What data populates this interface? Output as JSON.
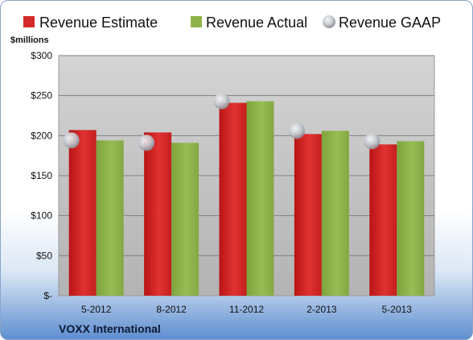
{
  "chart_data": {
    "type": "bar",
    "unit_label": "$millions",
    "categories": [
      "5-2012",
      "8-2012",
      "11-2012",
      "2-2013",
      "5-2013"
    ],
    "series": [
      {
        "name": "Revenue Estimate",
        "kind": "bar",
        "color": "#d42a2a",
        "values": [
          207,
          204,
          241,
          202,
          189
        ]
      },
      {
        "name": "Revenue Actual",
        "kind": "bar",
        "color": "#8eb34a",
        "values": [
          194,
          191,
          243,
          206,
          193
        ]
      },
      {
        "name": "Revenue GAAP",
        "kind": "marker",
        "color": "#b8bcc2",
        "values": [
          194,
          191,
          243,
          206,
          193
        ]
      }
    ],
    "y_ticks": [
      {
        "value": 0,
        "label": "$-"
      },
      {
        "value": 50,
        "label": "$50"
      },
      {
        "value": 100,
        "label": "$100"
      },
      {
        "value": 150,
        "label": "$150"
      },
      {
        "value": 200,
        "label": "$200"
      },
      {
        "value": 250,
        "label": "$250"
      },
      {
        "value": 300,
        "label": "$300"
      }
    ],
    "ylim": [
      0,
      300
    ],
    "grid": true,
    "legend_position": "top"
  },
  "footer": {
    "company": "VOXX International"
  }
}
